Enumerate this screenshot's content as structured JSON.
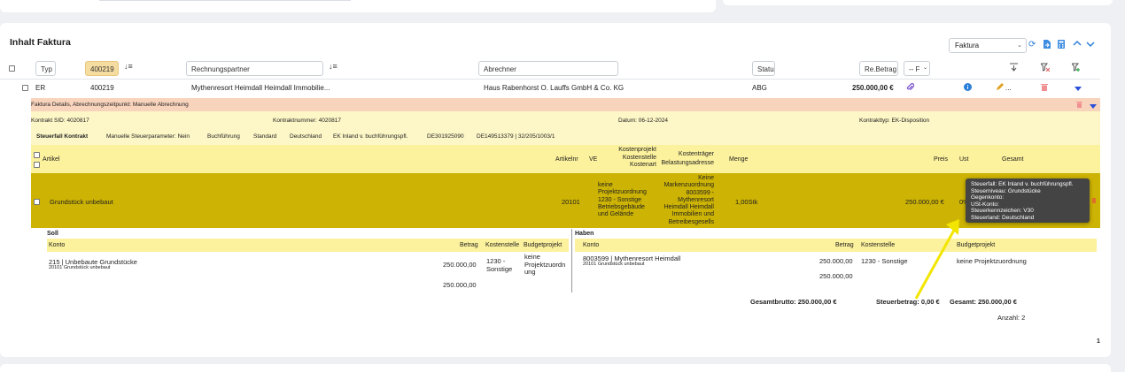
{
  "section_title": "Inhalt Faktura",
  "toolbar": {
    "select_value": "Faktura"
  },
  "filters": {
    "typ": "Typ",
    "nummer": "400219",
    "rechnungspartner": "Rechnungspartner",
    "abrechner": "Abrechner",
    "status": "Status",
    "re_betrag": "Re.Betrag",
    "f_select": "-- F"
  },
  "row": {
    "typ": "ER",
    "nummer": "400219",
    "rechnungspartner": "Mythenresort Heimdall Heimdall Immobilie...",
    "abrechner": "Haus Rabenhorst O. Lauffs GmbH & Co. KG",
    "status": "ABG",
    "betrag": "250.000,00 €",
    "ellipsis": "..."
  },
  "details": {
    "header": "Faktura Details, Abrechnungszeitpunkt: Manuelle Abrechnung",
    "kontrakt_sid": "Kontrakt SID: 4020817",
    "kontraktnummer": "Kontraktnummer: 4020817",
    "datum": "Datum: 06-12-2024",
    "kontrakttyp": "Kontrakttyp: EK-Disposition",
    "steuerfall_label": "Steuerfall Kontrakt",
    "steuer_items": [
      "Manuelle Steuerparameter: Nein",
      "Buchführung",
      "Standard",
      "Deutschland",
      "EK Inland v. buchführungspfl.",
      "DE301925090",
      "DE149513379 | 32/205/1003/1"
    ]
  },
  "article_table": {
    "headers": {
      "artikel": "Artikel",
      "artikelnr": "Artikelnr",
      "ve": "VE",
      "kostenprojekt": [
        "Kostenprojekt",
        "Kostenstelle",
        "Kostenart"
      ],
      "kostentraeger": [
        "Kostenträger",
        "Belastungsadresse"
      ],
      "menge": "Menge",
      "preis": "Preis",
      "ust": "Ust",
      "gesamt": "Gesamt"
    },
    "row": {
      "artikel": "Grundstück unbebaut",
      "artikelnr": "20101",
      "kostenprojekt": [
        "keine",
        "Projektzuordnung",
        "1230 - Sonstige",
        "Betriebsgebäude",
        "und Gelände"
      ],
      "kostentraeger": [
        "Keine",
        "Markenzuordnung",
        "8003599 -",
        "Mythenresort",
        "Heimdall Heimdall",
        "Immobilien und",
        "Betreibesgesells"
      ],
      "menge": "1,00Stk",
      "preis": "250.000,00 €",
      "ust": "0%"
    }
  },
  "tooltip": [
    "Steuerfall: EK Inland v. buchführungspfl.",
    "Steuerniveau: Grundstücke",
    "Gegenkonto:",
    "USt-Konto:",
    "Steuerkennzeichen: V30",
    "Steuerland: Deutschland"
  ],
  "soll": {
    "title": "Soll",
    "headers": {
      "konto": "Konto",
      "betrag": "Betrag",
      "kostenstelle": "Kostenstelle",
      "budgetprojekt": "Budgetprojekt"
    },
    "konto": "215 | Unbebaute Grundstücke",
    "konto_sub": "20101 Grundstück unbebaut",
    "betrag": "250.000,00",
    "kostenstelle": [
      "1230 -",
      "Sonstige"
    ],
    "budgetprojekt": [
      "keine",
      "Projektzuordn",
      "ung"
    ],
    "sum": "250.000,00"
  },
  "haben": {
    "title": "Haben",
    "headers": {
      "konto": "Konto",
      "betrag": "Betrag",
      "kostenstelle": "Kostenstelle",
      "budgetprojekt": "Budgetprojekt"
    },
    "konto": "8003599 | Mythenresort Heimdall",
    "konto_sub": "20101 Grundstück unbebaut",
    "betrag": "250.000,00",
    "kostenstelle": "1230 - Sonstige",
    "budgetprojekt": "keine Projektzuordnung",
    "sum": "250.000,00"
  },
  "totals": {
    "gesamtbrutto": "Gesamtbrutto: 250.000,00 €",
    "steuerbetrag": "Steuerbetrag: 0,00 €",
    "gesamt": "Gesamt: 250.000,00 €",
    "anzahl": "Anzahl: 2"
  },
  "pagination": {
    "page": "1"
  },
  "colors": {
    "accent": "#2b7fd8",
    "salmon": "#f9d4bd",
    "gold": "#cdb303",
    "arrow": "#f2e600"
  },
  "icons": [
    "refresh-icon",
    "export-icon",
    "calculator-icon",
    "chevron-up-icon",
    "chevron-down-icon",
    "filter-icon",
    "filter-remove-icon",
    "filter-settings-icon",
    "paperclip-icon",
    "info-icon",
    "pencil-icon",
    "trash-icon",
    "caret-down-icon"
  ]
}
